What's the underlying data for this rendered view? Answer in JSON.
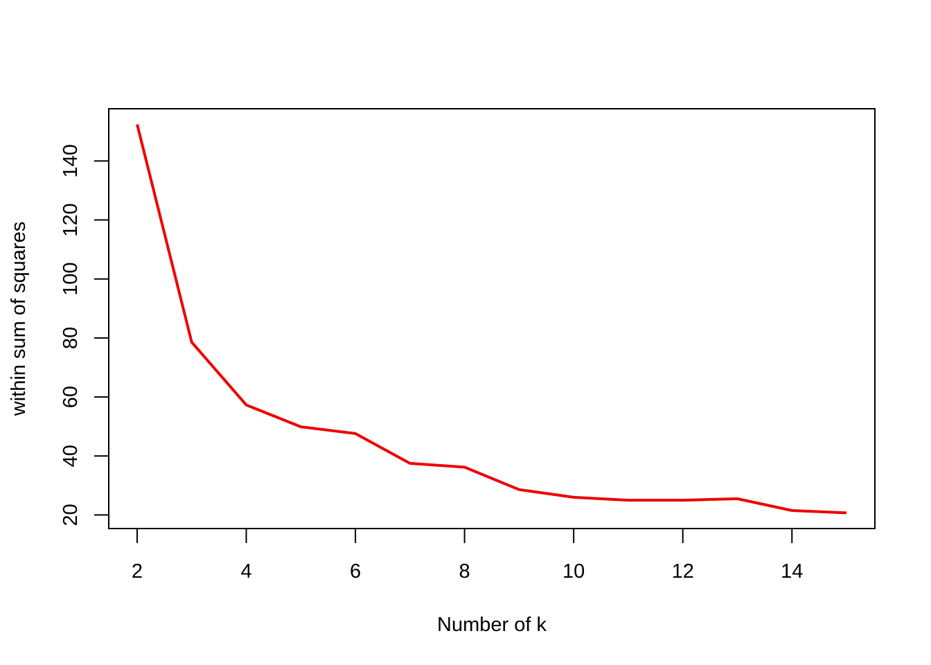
{
  "chart_data": {
    "type": "line",
    "title": "",
    "xlabel": "Number of k",
    "ylabel": "within sum of squares",
    "x": [
      2,
      3,
      4,
      5,
      6,
      7,
      8,
      9,
      10,
      11,
      12,
      13,
      14,
      15
    ],
    "series": [
      {
        "values": [
          152.4,
          78.6,
          57.3,
          49.9,
          47.6,
          37.5,
          36.2,
          28.6,
          26.0,
          25.0,
          25.0,
          25.5,
          21.5,
          20.7
        ],
        "color": "#ee0000"
      }
    ],
    "xlim": [
      1.48,
      15.52
    ],
    "ylim": [
      15.4,
      157.7
    ],
    "x_ticks": [
      2,
      4,
      6,
      8,
      10,
      12,
      14
    ],
    "y_ticks": [
      20,
      40,
      60,
      80,
      100,
      120,
      140
    ],
    "grid": false,
    "legend": "none"
  }
}
